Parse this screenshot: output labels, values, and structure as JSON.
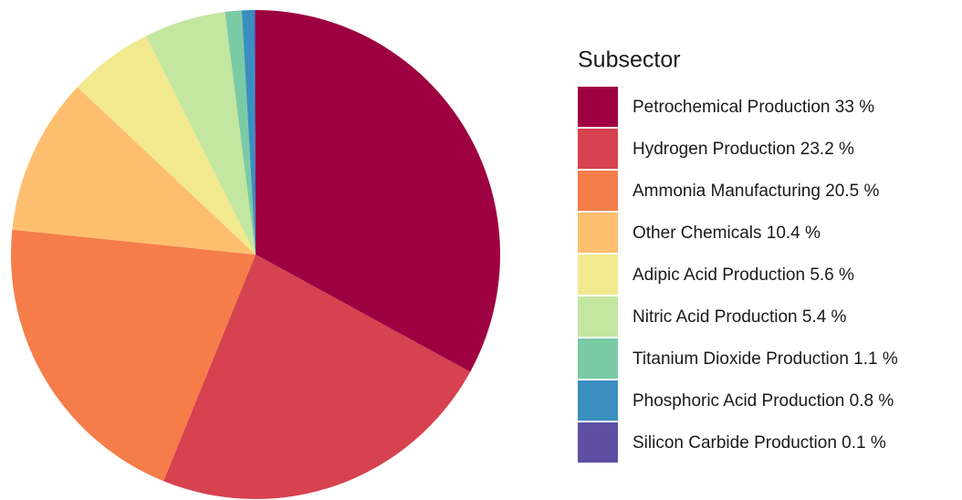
{
  "chart_data": {
    "type": "pie",
    "legend_title": "Subsector",
    "categories": [
      "Petrochemical Production 33 %",
      "Hydrogen Production 23.2 %",
      "Ammonia Manufacturing 20.5 %",
      "Other Chemicals 10.4 %",
      "Adipic Acid Production 5.6 %",
      "Nitric Acid Production 5.4 %",
      "Titanium Dioxide Production 1.1 %",
      "Phosphoric Acid Production 0.8 %",
      "Silicon Carbide Production 0.1 %"
    ],
    "values": [
      33,
      23.2,
      20.5,
      10.4,
      5.6,
      5.4,
      1.1,
      0.8,
      0.1
    ],
    "colors": [
      "#9e0142",
      "#d6424f",
      "#f47d4a",
      "#fdbf6f",
      "#f2e88e",
      "#c3e6a0",
      "#7acba5",
      "#3a8fc0",
      "#5e4fa2"
    ],
    "legend": "right"
  }
}
